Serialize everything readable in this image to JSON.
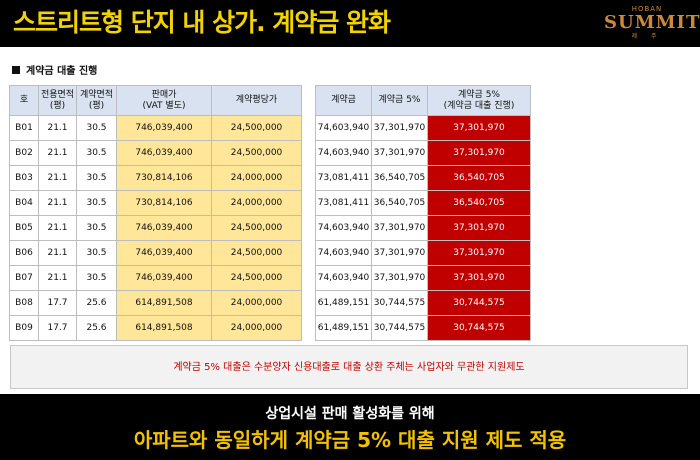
{
  "header": {
    "title": "스트리트형 단지 내 상가. 계약금 완화",
    "logo": {
      "top": "HOBAN",
      "main": "SUMMIT",
      "sub": "제 주"
    }
  },
  "section_title": "계약금 대출 진행",
  "table1": {
    "headers": [
      "호",
      "전용면적\n(평)",
      "계약면적\n(평)",
      "판매가\n(VAT 별도)",
      "계약평당가"
    ],
    "rows": [
      [
        "B01",
        "21.1",
        "30.5",
        "746,039,400",
        "24,500,000"
      ],
      [
        "B02",
        "21.1",
        "30.5",
        "746,039,400",
        "24,500,000"
      ],
      [
        "B03",
        "21.1",
        "30.5",
        "730,814,106",
        "24,000,000"
      ],
      [
        "B04",
        "21.1",
        "30.5",
        "730,814,106",
        "24,000,000"
      ],
      [
        "B05",
        "21.1",
        "30.5",
        "746,039,400",
        "24,500,000"
      ],
      [
        "B06",
        "21.1",
        "30.5",
        "746,039,400",
        "24,500,000"
      ],
      [
        "B07",
        "21.1",
        "30.5",
        "746,039,400",
        "24,500,000"
      ],
      [
        "B08",
        "17.7",
        "25.6",
        "614,891,508",
        "24,000,000"
      ],
      [
        "B09",
        "17.7",
        "25.6",
        "614,891,508",
        "24,000,000"
      ]
    ]
  },
  "table2": {
    "headers": [
      "계약금",
      "계약금 5%",
      "계약금 5%\n(계약금 대출 진행)"
    ],
    "rows": [
      [
        "74,603,940",
        "37,301,970",
        "37,301,970"
      ],
      [
        "74,603,940",
        "37,301,970",
        "37,301,970"
      ],
      [
        "73,081,411",
        "36,540,705",
        "36,540,705"
      ],
      [
        "73,081,411",
        "36,540,705",
        "36,540,705"
      ],
      [
        "74,603,940",
        "37,301,970",
        "37,301,970"
      ],
      [
        "74,603,940",
        "37,301,970",
        "37,301,970"
      ],
      [
        "74,603,940",
        "37,301,970",
        "37,301,970"
      ],
      [
        "61,489,151",
        "30,744,575",
        "30,744,575"
      ],
      [
        "61,489,151",
        "30,744,575",
        "30,744,575"
      ]
    ]
  },
  "note": "계약금 5% 대출은 수분양자 신용대출로 대출 상환 주체는 사업자와 무관한 지원제도",
  "footer": {
    "line1": "상업시설 판매 활성화를 위해",
    "line2": "아파트와 동일하게 계약금 5% 대출 지원 제도 적용"
  },
  "colors": {
    "header_bg": "#000000",
    "title": "#f2d300",
    "logo": "#c98a3a",
    "highlight_yellow": "#ffe699",
    "highlight_red": "#c00000",
    "header_cell": "#d9e2f1",
    "footer_line2": "#f2c200"
  }
}
